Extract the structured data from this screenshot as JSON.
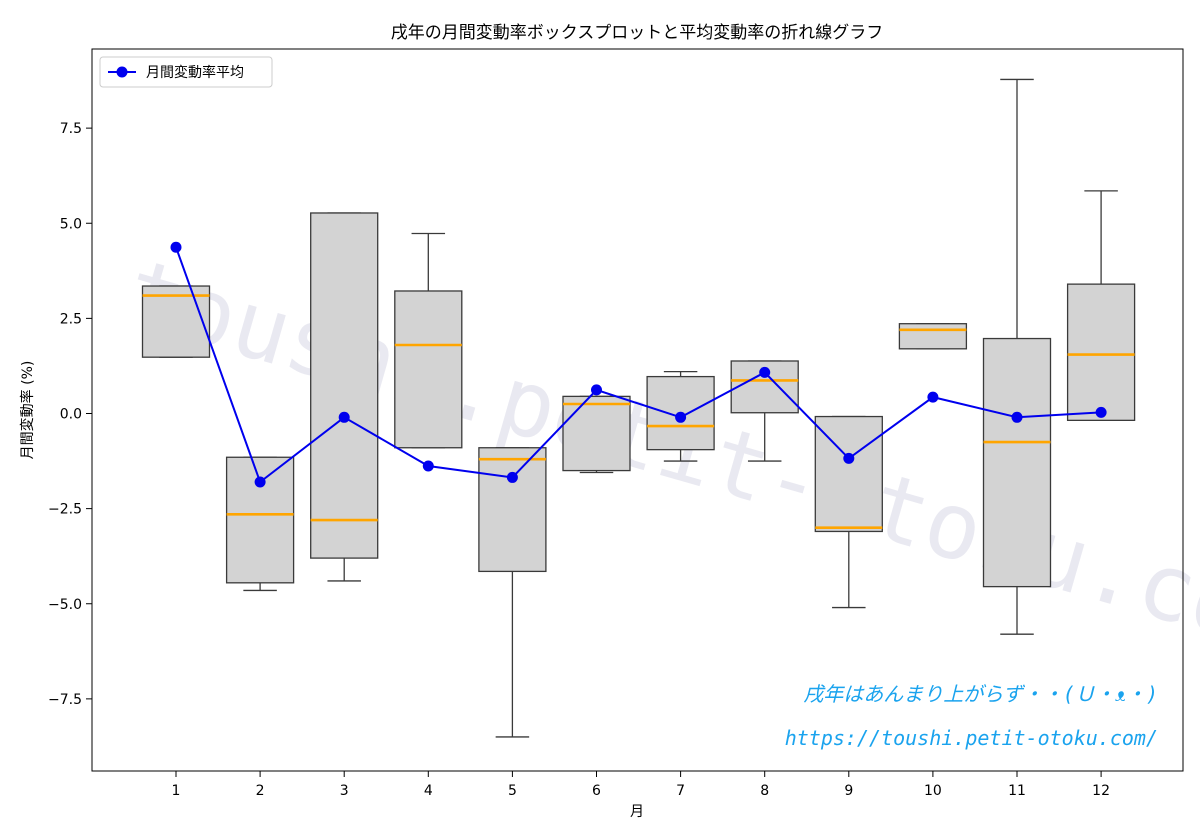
{
  "chart_data": {
    "type": "box+line",
    "title": "戌年の月間変動率ボックスプロットと平均変動率の折れ線グラフ",
    "xlabel": "月",
    "ylabel": "月間変動率 (%)",
    "categories": [
      "1",
      "2",
      "3",
      "4",
      "5",
      "6",
      "7",
      "8",
      "9",
      "10",
      "11",
      "12"
    ],
    "ylim": [
      -9.3,
      9.35
    ],
    "y_ticks": [
      -7.5,
      -5.0,
      -2.5,
      0.0,
      2.5,
      5.0,
      7.5
    ],
    "y_tick_labels": [
      "−7.5",
      "−5.0",
      "−2.5",
      "0.0",
      "2.5",
      "5.0",
      "7.5"
    ],
    "grid": false,
    "legend_position": "top-left",
    "boxes": [
      {
        "month": "1",
        "whisker_low": 1.48,
        "q1": 1.48,
        "median": 3.1,
        "q3": 3.35,
        "whisker_high": 3.35
      },
      {
        "month": "2",
        "whisker_low": -4.65,
        "q1": -4.45,
        "median": -2.65,
        "q3": -1.15,
        "whisker_high": -1.15
      },
      {
        "month": "3",
        "whisker_low": -4.4,
        "q1": -3.8,
        "median": -2.8,
        "q3": 5.27,
        "whisker_high": 5.27
      },
      {
        "month": "4",
        "whisker_low": -0.9,
        "q1": -0.9,
        "median": 1.8,
        "q3": 3.22,
        "whisker_high": 4.73
      },
      {
        "month": "5",
        "whisker_low": -8.5,
        "q1": -4.15,
        "median": -1.2,
        "q3": -0.9,
        "whisker_high": -0.9
      },
      {
        "month": "6",
        "whisker_low": -1.55,
        "q1": -1.5,
        "median": 0.25,
        "q3": 0.45,
        "whisker_high": 0.45
      },
      {
        "month": "7",
        "whisker_low": -1.25,
        "q1": -0.95,
        "median": -0.33,
        "q3": 0.97,
        "whisker_high": 1.1
      },
      {
        "month": "8",
        "whisker_low": -1.25,
        "q1": 0.02,
        "median": 0.87,
        "q3": 1.38,
        "whisker_high": 1.38
      },
      {
        "month": "9",
        "whisker_low": -5.1,
        "q1": -3.1,
        "median": -3.0,
        "q3": -0.08,
        "whisker_high": -0.08
      },
      {
        "month": "10",
        "whisker_low": 1.7,
        "q1": 1.7,
        "median": 2.2,
        "q3": 2.36,
        "whisker_high": 2.36
      },
      {
        "month": "11",
        "whisker_low": -5.8,
        "q1": -4.55,
        "median": -0.75,
        "q3": 1.97,
        "whisker_high": 8.78
      },
      {
        "month": "12",
        "whisker_low": -0.18,
        "q1": -0.18,
        "median": 1.55,
        "q3": 3.4,
        "whisker_high": 5.85
      }
    ],
    "series": [
      {
        "name": "月間変動率平均",
        "values": [
          4.37,
          -1.8,
          -0.1,
          -1.38,
          -1.68,
          0.62,
          -0.1,
          1.08,
          -1.18,
          0.43,
          -0.1,
          0.03
        ]
      }
    ],
    "colors": {
      "box_fill": "#d3d3d3",
      "box_edge": "#3a3a3a",
      "median": "#ffa500",
      "mean_line": "#0000ee",
      "watermark": "#d8d8e6",
      "note": "#1aa3ee"
    },
    "watermark_text": "toushi.petit-otoku.com",
    "annotation_lines": [
      "戌年はあんまり上がらず・・(Ｕ・ᴥ・)",
      "https://toushi.petit-otoku.com/"
    ]
  }
}
